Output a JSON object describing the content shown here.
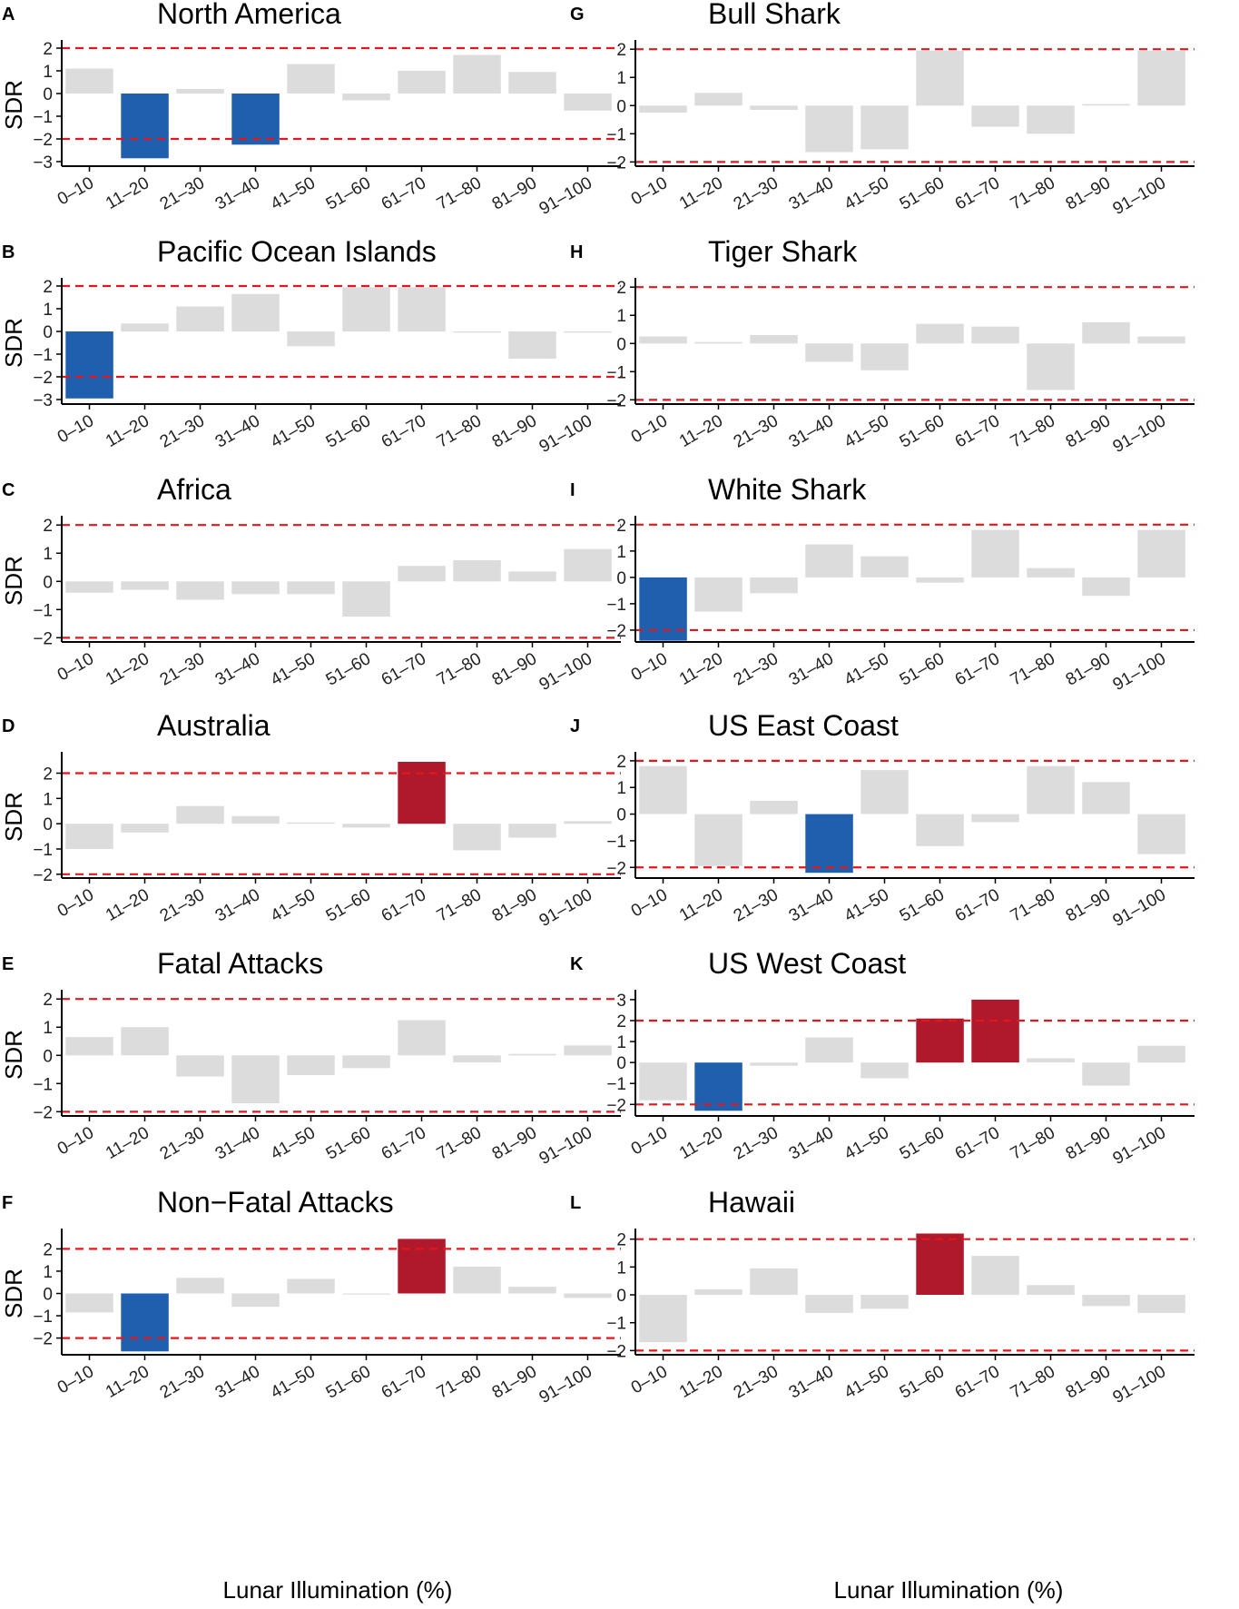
{
  "figure": {
    "xlabel_left": "Lunar Illumination (%)",
    "xlabel_right": "Lunar Illumination (%)",
    "colors": {
      "neutral": "#dcdcdc",
      "low": "#1f5fae",
      "high": "#b0182b",
      "threshold": "#e3171b",
      "axis": "#000000"
    }
  },
  "chart_data": [
    {
      "panel": "A",
      "type": "bar",
      "title": "North America",
      "ylabel": "SDR",
      "categories": [
        "0–10",
        "11–20",
        "21–30",
        "31–40",
        "41–50",
        "51–60",
        "61–70",
        "71–80",
        "81–90",
        "91–100"
      ],
      "values": [
        1.1,
        -2.85,
        0.2,
        -2.25,
        1.3,
        -0.3,
        1.0,
        1.7,
        0.95,
        -0.75
      ],
      "ylim": [
        -3.2,
        2.2
      ],
      "yticks": [
        -3,
        -2,
        -1,
        0,
        1,
        2
      ],
      "thresholds": [
        -2,
        2
      ]
    },
    {
      "panel": "B",
      "type": "bar",
      "title": "Pacific Ocean Islands",
      "ylabel": "SDR",
      "categories": [
        "0–10",
        "11–20",
        "21–30",
        "31–40",
        "41–50",
        "51–60",
        "61–70",
        "71–80",
        "81–90",
        "91–100"
      ],
      "values": [
        -2.95,
        0.35,
        1.1,
        1.65,
        -0.65,
        1.95,
        1.95,
        -0.05,
        -1.2,
        -0.05
      ],
      "ylim": [
        -3.2,
        2.2
      ],
      "yticks": [
        -3,
        -2,
        -1,
        0,
        1,
        2
      ],
      "thresholds": [
        -2,
        2
      ]
    },
    {
      "panel": "C",
      "type": "bar",
      "title": "Africa",
      "ylabel": "SDR",
      "categories": [
        "0–10",
        "11–20",
        "21–30",
        "31–40",
        "41–50",
        "51–60",
        "61–70",
        "71–80",
        "81–90",
        "91–100"
      ],
      "values": [
        -0.4,
        -0.3,
        -0.65,
        -0.45,
        -0.45,
        -1.25,
        0.55,
        0.75,
        0.35,
        1.15
      ],
      "ylim": [
        -2.15,
        2.2
      ],
      "yticks": [
        -2,
        -1,
        0,
        1,
        2
      ],
      "thresholds": [
        -2,
        2
      ]
    },
    {
      "panel": "D",
      "type": "bar",
      "title": "Australia",
      "ylabel": "SDR",
      "categories": [
        "0–10",
        "11–20",
        "21–30",
        "31–40",
        "41–50",
        "51–60",
        "61–70",
        "71–80",
        "81–90",
        "91–100"
      ],
      "values": [
        -1.0,
        -0.35,
        0.7,
        0.3,
        0.05,
        -0.15,
        2.45,
        -1.05,
        -0.55,
        0.1
      ],
      "ylim": [
        -2.15,
        2.7
      ],
      "yticks": [
        -2,
        -1,
        0,
        1,
        2
      ],
      "thresholds": [
        -2,
        2
      ]
    },
    {
      "panel": "E",
      "type": "bar",
      "title": "Fatal Attacks",
      "ylabel": "SDR",
      "categories": [
        "0–10",
        "11–20",
        "21–30",
        "31–40",
        "41–50",
        "51–60",
        "61–70",
        "71–80",
        "81–90",
        "91–100"
      ],
      "values": [
        0.65,
        1.0,
        -0.75,
        -1.7,
        -0.7,
        -0.45,
        1.25,
        -0.25,
        0.05,
        0.35
      ],
      "ylim": [
        -2.15,
        2.2
      ],
      "yticks": [
        -2,
        -1,
        0,
        1,
        2
      ],
      "thresholds": [
        -2,
        2
      ]
    },
    {
      "panel": "F",
      "type": "bar",
      "title": "Non−Fatal Attacks",
      "ylabel": "SDR",
      "categories": [
        "0–10",
        "11–20",
        "21–30",
        "31–40",
        "41–50",
        "51–60",
        "61–70",
        "71–80",
        "81–90",
        "91–100"
      ],
      "values": [
        -0.85,
        -2.6,
        0.7,
        -0.6,
        0.65,
        -0.05,
        2.45,
        1.2,
        0.3,
        -0.2
      ],
      "ylim": [
        -2.75,
        2.75
      ],
      "yticks": [
        -2,
        -1,
        0,
        1,
        2
      ],
      "thresholds": [
        -2,
        2
      ]
    },
    {
      "panel": "G",
      "type": "bar",
      "title": "Bull Shark",
      "ylabel": "",
      "categories": [
        "0–10",
        "11–20",
        "21–30",
        "31–40",
        "41–50",
        "51–60",
        "61–70",
        "71–80",
        "81–90",
        "91–100"
      ],
      "values": [
        -0.25,
        0.45,
        -0.15,
        -1.65,
        -1.55,
        1.95,
        -0.75,
        -1.0,
        0.05,
        1.95
      ],
      "ylim": [
        -2.15,
        2.2
      ],
      "yticks": [
        -2,
        -1,
        0,
        1,
        2
      ],
      "thresholds": [
        -2,
        2
      ]
    },
    {
      "panel": "H",
      "type": "bar",
      "title": "Tiger Shark",
      "ylabel": "",
      "categories": [
        "0–10",
        "11–20",
        "21–30",
        "31–40",
        "41–50",
        "51–60",
        "61–70",
        "71–80",
        "81–90",
        "91–100"
      ],
      "values": [
        0.25,
        0.05,
        0.3,
        -0.65,
        -0.95,
        0.7,
        0.6,
        -1.65,
        0.75,
        0.25
      ],
      "ylim": [
        -2.15,
        2.2
      ],
      "yticks": [
        -2,
        -1,
        0,
        1,
        2
      ],
      "thresholds": [
        -2,
        2
      ]
    },
    {
      "panel": "I",
      "type": "bar",
      "title": "White Shark",
      "ylabel": "",
      "categories": [
        "0–10",
        "11–20",
        "21–30",
        "31–40",
        "41–50",
        "51–60",
        "61–70",
        "71–80",
        "81–90",
        "91–100"
      ],
      "values": [
        -2.4,
        -1.3,
        -0.6,
        1.25,
        0.8,
        -0.2,
        1.8,
        0.35,
        -0.7,
        1.8
      ],
      "ylim": [
        -2.45,
        2.2
      ],
      "yticks": [
        -2,
        -1,
        0,
        1,
        2
      ],
      "thresholds": [
        -2,
        2
      ]
    },
    {
      "panel": "J",
      "type": "bar",
      "title": "US East Coast",
      "ylabel": "",
      "categories": [
        "0–10",
        "11–20",
        "21–30",
        "31–40",
        "41–50",
        "51–60",
        "61–70",
        "71–80",
        "81–90",
        "91–100"
      ],
      "values": [
        1.8,
        -1.95,
        0.5,
        -2.2,
        1.65,
        -1.2,
        -0.3,
        1.8,
        1.2,
        -1.5
      ],
      "ylim": [
        -2.4,
        2.2
      ],
      "yticks": [
        -2,
        -1,
        0,
        1,
        2
      ],
      "thresholds": [
        -2,
        2
      ]
    },
    {
      "panel": "K",
      "type": "bar",
      "title": "US West Coast",
      "ylabel": "",
      "categories": [
        "0–10",
        "11–20",
        "21–30",
        "31–40",
        "41–50",
        "51–60",
        "61–70",
        "71–80",
        "81–90",
        "91–100"
      ],
      "values": [
        -1.8,
        -2.3,
        -0.15,
        1.2,
        -0.75,
        2.1,
        3.0,
        0.2,
        -1.1,
        0.8
      ],
      "ylim": [
        -2.55,
        3.3
      ],
      "yticks": [
        -2,
        -1,
        0,
        1,
        2,
        3
      ],
      "thresholds": [
        -2,
        2
      ]
    },
    {
      "panel": "L",
      "type": "bar",
      "title": "Hawaii",
      "ylabel": "",
      "categories": [
        "0–10",
        "11–20",
        "21–30",
        "31–40",
        "41–50",
        "51–60",
        "61–70",
        "71–80",
        "81–90",
        "91–100"
      ],
      "values": [
        -1.7,
        0.2,
        0.95,
        -0.65,
        -0.5,
        2.2,
        1.4,
        0.35,
        -0.4,
        -0.65
      ],
      "ylim": [
        -2.15,
        2.25
      ],
      "yticks": [
        -2,
        -1,
        0,
        1,
        2
      ],
      "thresholds": [
        -2,
        2
      ]
    }
  ]
}
